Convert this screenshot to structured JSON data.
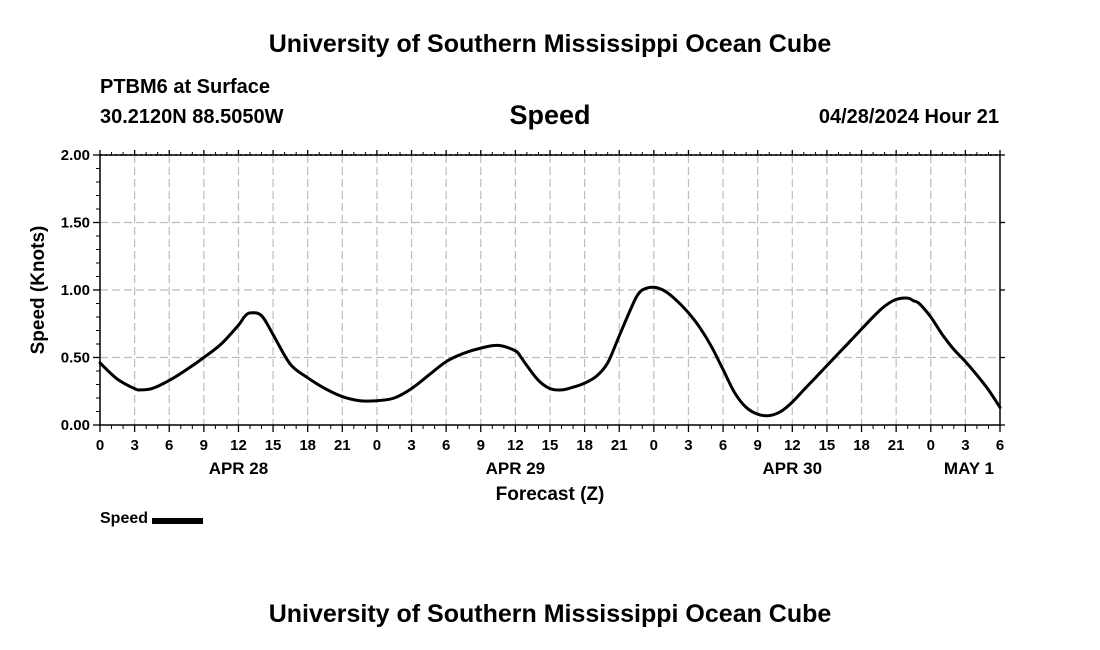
{
  "header": {
    "title": "University of Southern Mississippi Ocean Cube",
    "station": "PTBM6 at Surface",
    "coordinates": "30.2120N  88.5050W",
    "variable": "Speed",
    "datetime": "04/28/2024 Hour 21"
  },
  "footer": {
    "title": "University of Southern Mississippi Ocean Cube"
  },
  "legend": {
    "label": "Speed",
    "color": "#000000"
  },
  "chart_data": {
    "type": "line",
    "title": "Speed",
    "xlabel": "Forecast (Z)",
    "ylabel": "Speed (Knots)",
    "ylim": [
      0,
      2
    ],
    "yticks": [
      "0.00",
      "0.50",
      "1.00",
      "1.50",
      "2.00"
    ],
    "xlim": [
      0,
      78
    ],
    "xtick_labels": [
      "0",
      "3",
      "6",
      "9",
      "12",
      "15",
      "18",
      "21",
      "0",
      "3",
      "6",
      "9",
      "12",
      "15",
      "18",
      "21",
      "0",
      "3",
      "6",
      "9",
      "12",
      "15",
      "18",
      "21",
      "0",
      "3",
      "6"
    ],
    "date_labels": [
      {
        "label": "APR 28",
        "hour": 12
      },
      {
        "label": "APR 29",
        "hour": 36
      },
      {
        "label": "APR 30",
        "hour": 60
      },
      {
        "label": "MAY 1",
        "hour": 78
      }
    ],
    "grid": true,
    "series": [
      {
        "name": "Speed",
        "color": "#000000",
        "x": [
          0,
          1.5,
          3,
          3.5,
          4.5,
          6,
          7.5,
          9,
          10.5,
          12,
          12.5,
          13,
          14,
          15,
          16.5,
          18,
          19.5,
          21,
          22.5,
          24,
          25.5,
          27,
          28.5,
          30,
          31.5,
          33,
          34.5,
          36,
          36.5,
          37,
          38,
          39,
          40,
          41,
          42,
          43,
          44,
          45,
          46,
          46.5,
          47,
          48,
          49,
          50,
          51,
          52,
          53,
          54,
          55,
          56,
          57,
          58,
          59,
          60,
          61,
          62,
          63,
          64,
          65,
          66,
          67,
          68,
          69,
          70,
          70.5,
          71,
          72,
          73,
          74,
          75,
          76,
          77,
          78
        ],
        "values": [
          0.46,
          0.34,
          0.27,
          0.26,
          0.27,
          0.33,
          0.41,
          0.5,
          0.6,
          0.74,
          0.8,
          0.83,
          0.81,
          0.67,
          0.45,
          0.35,
          0.27,
          0.21,
          0.18,
          0.18,
          0.2,
          0.27,
          0.37,
          0.47,
          0.53,
          0.57,
          0.59,
          0.55,
          0.5,
          0.44,
          0.33,
          0.27,
          0.26,
          0.28,
          0.31,
          0.36,
          0.46,
          0.66,
          0.86,
          0.95,
          1.0,
          1.02,
          0.99,
          0.92,
          0.83,
          0.72,
          0.58,
          0.41,
          0.24,
          0.13,
          0.08,
          0.07,
          0.1,
          0.17,
          0.26,
          0.35,
          0.44,
          0.53,
          0.62,
          0.71,
          0.8,
          0.88,
          0.93,
          0.94,
          0.92,
          0.9,
          0.8,
          0.67,
          0.56,
          0.47,
          0.37,
          0.26,
          0.13
        ]
      }
    ]
  }
}
